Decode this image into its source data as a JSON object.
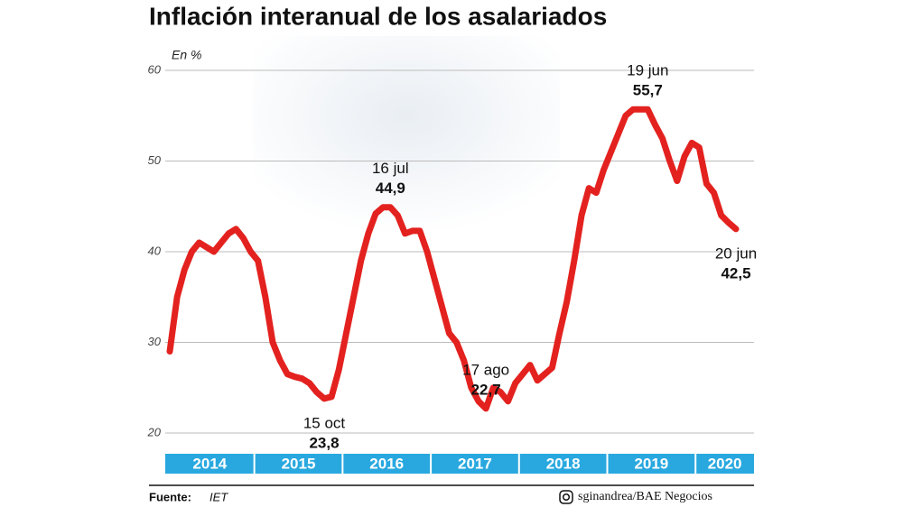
{
  "chart_data": {
    "type": "line",
    "title": "Inflación interanual de los asalariados",
    "unit_label": "En %",
    "years": [
      "2014",
      "2015",
      "2016",
      "2017",
      "2018",
      "2019",
      "2020"
    ],
    "ylim": [
      20,
      60
    ],
    "yticks": [
      20,
      30,
      40,
      50,
      60
    ],
    "grid": true,
    "series": [
      {
        "color": "#e3221f",
        "values": [
          29,
          35,
          38,
          40,
          41,
          40.5,
          40,
          41,
          42,
          42.5,
          41.5,
          40,
          39,
          35,
          30,
          28,
          26.5,
          26.2,
          26,
          25.5,
          24.5,
          23.8,
          24,
          27,
          31,
          35,
          39,
          42,
          44.2,
          44.9,
          44.9,
          44,
          42,
          42.3,
          42.3,
          40,
          37,
          34,
          31,
          30,
          28,
          25,
          23.5,
          22.7,
          25,
          24.5,
          23.5,
          25.5,
          26.5,
          27.5,
          25.8,
          26.5,
          27.2,
          31,
          34.5,
          39,
          44,
          47,
          46.5,
          49,
          51,
          53,
          55,
          55.7,
          55.7,
          55.7,
          54,
          52.5,
          50,
          47.8,
          50.5,
          52,
          51.5,
          47.5,
          46.5,
          44,
          43.2,
          42.5
        ],
        "point_labels": [
          null,
          null,
          null,
          null,
          null,
          null,
          null,
          null,
          null,
          null,
          null,
          null,
          null,
          null,
          null,
          null,
          null,
          null,
          null,
          null,
          null,
          "15 oct",
          null,
          null,
          null,
          null,
          null,
          null,
          null,
          null,
          "16 jul",
          null,
          null,
          null,
          null,
          null,
          null,
          null,
          null,
          null,
          null,
          null,
          null,
          "17 ago",
          null,
          null,
          null,
          null,
          null,
          null,
          null,
          null,
          null,
          null,
          null,
          null,
          null,
          null,
          null,
          null,
          null,
          null,
          null,
          null,
          null,
          "19 jun",
          null,
          null,
          null,
          null,
          null,
          null,
          null,
          null,
          null,
          null,
          null,
          "20 jun"
        ],
        "value_labels": [
          null,
          null,
          null,
          null,
          null,
          null,
          null,
          null,
          null,
          null,
          null,
          null,
          null,
          null,
          null,
          null,
          null,
          null,
          null,
          null,
          null,
          "23,8",
          null,
          null,
          null,
          null,
          null,
          null,
          null,
          null,
          "44,9",
          null,
          null,
          null,
          null,
          null,
          null,
          null,
          null,
          null,
          null,
          null,
          null,
          "22,7",
          null,
          null,
          null,
          null,
          null,
          null,
          null,
          null,
          null,
          null,
          null,
          null,
          null,
          null,
          null,
          null,
          null,
          null,
          null,
          null,
          null,
          "55,7",
          null,
          null,
          null,
          null,
          null,
          null,
          null,
          null,
          null,
          null,
          null,
          "42,5"
        ]
      }
    ],
    "source_label": "Fuente:",
    "source": "IET",
    "credit": "sginandrea/BAE Negocios"
  }
}
